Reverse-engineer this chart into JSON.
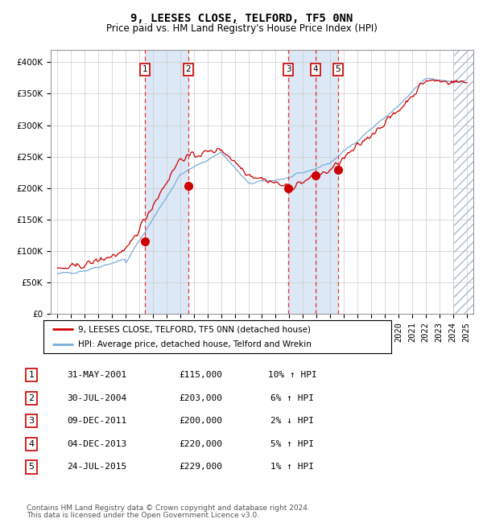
{
  "title": "9, LEESES CLOSE, TELFORD, TF5 0NN",
  "subtitle": "Price paid vs. HM Land Registry's House Price Index (HPI)",
  "legend_line1": "9, LEESES CLOSE, TELFORD, TF5 0NN (detached house)",
  "legend_line2": "HPI: Average price, detached house, Telford and Wrekin",
  "footer1": "Contains HM Land Registry data © Crown copyright and database right 2024.",
  "footer2": "This data is licensed under the Open Government Licence v3.0.",
  "sale_dates_num": [
    2001.42,
    2004.58,
    2011.92,
    2013.92,
    2015.56
  ],
  "sale_prices": [
    115000,
    203000,
    200000,
    220000,
    229000
  ],
  "sale_labels": [
    "1",
    "2",
    "3",
    "4",
    "5"
  ],
  "sale_table": [
    [
      "1",
      "31-MAY-2001",
      "£115,000",
      "10% ↑ HPI"
    ],
    [
      "2",
      "30-JUL-2004",
      "£203,000",
      "6% ↑ HPI"
    ],
    [
      "3",
      "09-DEC-2011",
      "£200,000",
      "2% ↓ HPI"
    ],
    [
      "4",
      "04-DEC-2013",
      "£220,000",
      "5% ↑ HPI"
    ],
    [
      "5",
      "24-JUL-2015",
      "£229,000",
      "1% ↑ HPI"
    ]
  ],
  "xlim": [
    1994.5,
    2025.5
  ],
  "ylim": [
    0,
    420000
  ],
  "yticks": [
    0,
    50000,
    100000,
    150000,
    200000,
    250000,
    300000,
    350000,
    400000
  ],
  "ytick_labels": [
    "£0",
    "£50K",
    "£100K",
    "£150K",
    "£200K",
    "£250K",
    "£300K",
    "£350K",
    "£400K"
  ],
  "hpi_color": "#7aacdc",
  "price_color": "#cc0000",
  "dot_color": "#cc0000",
  "vline_color": "#ee3333",
  "grid_color": "#cccccc",
  "shade_color": "#dce8f5",
  "title_fontsize": 10,
  "subtitle_fontsize": 8.5,
  "axis_fontsize": 7.5,
  "table_fontsize": 8
}
